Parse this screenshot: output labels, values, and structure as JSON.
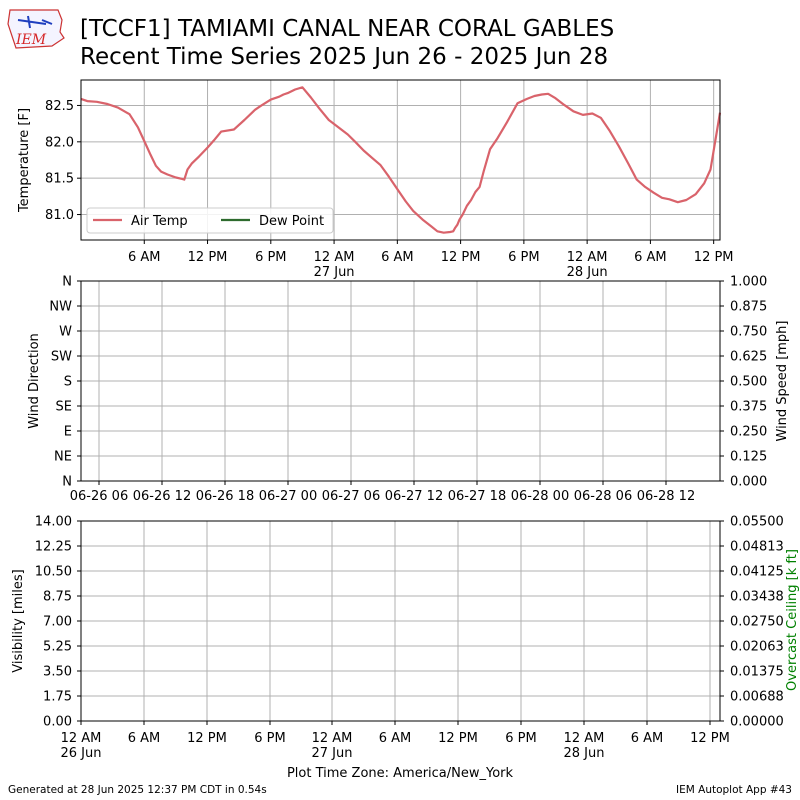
{
  "header": {
    "title_line1": "[TCCF1] TAMIAMI CANAL NEAR CORAL GABLES",
    "title_line2": "Recent Time Series 2025 Jun 26 - 2025 Jun 28",
    "logo_text": "IEM",
    "logo_color": "#d62728"
  },
  "footer": {
    "generated": "Generated at 28 Jun 2025 12:37 PM CDT in 0.54s",
    "app": "IEM Autoplot App #43",
    "timezone": "Plot Time Zone: America/New_York"
  },
  "chart_data": [
    {
      "type": "line",
      "ylabel": "Temperature [F]",
      "ylim": [
        80.65,
        82.85
      ],
      "yticks": [
        "81.0",
        "81.5",
        "82.0",
        "82.5"
      ],
      "ytick_values": [
        81.0,
        81.5,
        82.0,
        82.5
      ],
      "xlim": [
        0,
        60.6
      ],
      "xticks": [
        6,
        12,
        18,
        24,
        30,
        36,
        42,
        48,
        54,
        60
      ],
      "xtick_labels": [
        "6 AM",
        "12 PM",
        "6 PM",
        "12 AM",
        "6 AM",
        "12 PM",
        "6 PM",
        "12 AM",
        "6 AM",
        "12 PM"
      ],
      "xtick_sublabels": [
        "",
        "",
        "",
        "27 Jun",
        "",
        "",
        "",
        "28 Jun",
        "",
        ""
      ],
      "x_unit": "hours since 26 Jun 12 AM",
      "grid": true,
      "legend_placement": "lower-left",
      "series": [
        {
          "name": "Air Temp",
          "color": "#d9636b",
          "x": [
            0,
            0.6,
            1.5,
            2.5,
            3.5,
            4.6,
            5.4,
            6.0,
            6.6,
            7.1,
            7.6,
            8.2,
            9.0,
            9.6,
            9.8,
            10.1,
            10.5,
            11.2,
            12.0,
            12.6,
            13.3,
            14.5,
            15.5,
            16.5,
            17.0,
            18.0,
            18.8,
            19.2,
            19.6,
            20.3,
            21.0,
            21.8,
            22.6,
            23.5,
            24.5,
            25.3,
            26.0,
            26.8,
            27.6,
            28.4,
            29.2,
            30.0,
            30.8,
            31.5,
            32.4,
            33.2,
            33.8,
            34.4,
            35.0,
            35.3,
            35.5,
            35.7,
            35.9,
            36.2,
            36.6,
            37.0,
            37.4,
            37.8,
            38.2,
            38.8,
            39.5,
            40.4,
            41.4,
            42.3,
            43.0,
            43.7,
            44.3,
            45.0,
            45.8,
            46.7,
            47.6,
            48.5,
            49.3,
            50.1,
            51.0,
            51.9,
            52.7,
            53.5,
            54.3,
            55.1,
            55.8,
            56.6,
            57.4,
            58.3,
            59.1,
            59.7,
            60.6
          ],
          "y": [
            82.59,
            82.56,
            82.55,
            82.52,
            82.47,
            82.38,
            82.2,
            82.01,
            81.82,
            81.67,
            81.59,
            81.55,
            81.51,
            81.49,
            81.48,
            81.62,
            81.7,
            81.8,
            81.92,
            82.02,
            82.14,
            82.17,
            82.3,
            82.44,
            82.49,
            82.58,
            82.62,
            82.65,
            82.67,
            82.72,
            82.75,
            82.61,
            82.46,
            82.3,
            82.19,
            82.1,
            82.0,
            81.88,
            81.78,
            81.68,
            81.52,
            81.35,
            81.18,
            81.05,
            80.93,
            80.84,
            80.77,
            80.75,
            80.76,
            80.77,
            80.82,
            80.86,
            80.93,
            81.0,
            81.12,
            81.2,
            81.31,
            81.38,
            81.6,
            81.9,
            82.05,
            82.27,
            82.53,
            82.59,
            82.63,
            82.65,
            82.66,
            82.6,
            82.51,
            82.42,
            82.37,
            82.39,
            82.33,
            82.16,
            81.94,
            81.7,
            81.48,
            81.38,
            81.3,
            81.23,
            81.21,
            81.17,
            81.2,
            81.28,
            81.43,
            81.62,
            82.4
          ]
        },
        {
          "name": "Dew Point",
          "color": "#2e6b2e",
          "x": [],
          "y": []
        }
      ]
    },
    {
      "type": "line",
      "ylabel": "Wind Direction",
      "y2label": "Wind Speed [mph]",
      "ylim": [
        0,
        360
      ],
      "yticks": [
        "N",
        "NE",
        "E",
        "SE",
        "S",
        "SW",
        "W",
        "NW",
        "N"
      ],
      "y2ticks": [
        "0.000",
        "0.125",
        "0.250",
        "0.375",
        "0.500",
        "0.625",
        "0.750",
        "0.875",
        "1.000"
      ],
      "xtick_labels": [
        "06-26 06",
        "06-26 12",
        "06-26 18",
        "06-27 00",
        "06-27 06",
        "06-27 12",
        "06-27 18",
        "06-28 00",
        "06-28 06",
        "06-28 12"
      ],
      "grid": true,
      "series": []
    },
    {
      "type": "line",
      "ylabel": "Visibility [miles]",
      "y2label": "Overcast Ceiling [k ft]",
      "y2label_color": "#008000",
      "ylim": [
        0,
        14
      ],
      "yticks": [
        "0.00",
        "1.75",
        "3.50",
        "5.25",
        "7.00",
        "8.75",
        "10.50",
        "12.25",
        "14.00"
      ],
      "y2ticks": [
        "0.00000",
        "0.00688",
        "0.01375",
        "0.02063",
        "0.02750",
        "0.03438",
        "0.04125",
        "0.04813",
        "0.05500"
      ],
      "xtick_labels": [
        "12 AM",
        "6 AM",
        "12 PM",
        "6 PM",
        "12 AM",
        "6 AM",
        "12 PM",
        "6 PM",
        "12 AM",
        "6 AM",
        "12 PM"
      ],
      "xtick_sublabels": [
        "26 Jun",
        "",
        "",
        "",
        "27 Jun",
        "",
        "",
        "",
        "28 Jun",
        "",
        ""
      ],
      "grid": true,
      "series": []
    }
  ]
}
